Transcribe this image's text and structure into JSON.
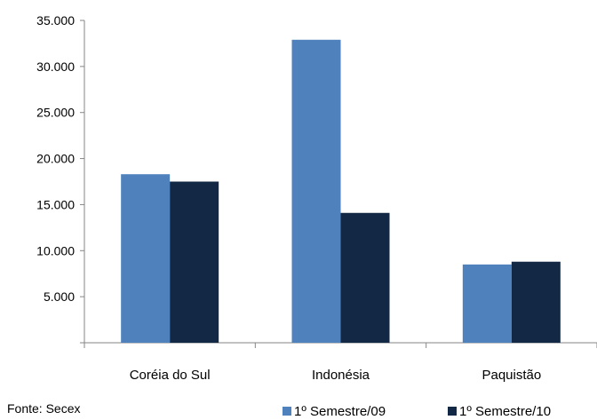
{
  "chart_data": {
    "type": "bar",
    "categories": [
      "Coréia do Sul",
      "Indonésia",
      "Paquistão"
    ],
    "series": [
      {
        "name": "1º Semestre/09",
        "color": "#4f81bd",
        "values": [
          18300,
          32900,
          8500
        ]
      },
      {
        "name": "1º Semestre/10",
        "color": "#132845",
        "values": [
          17500,
          14100,
          8800
        ]
      }
    ],
    "y_ticks": [
      "5.000",
      "10.000",
      "15.000",
      "20.000",
      "25.000",
      "30.000",
      "35.000"
    ],
    "ylim": [
      0,
      35000
    ],
    "legend_position": "bottom-right",
    "grid": false
  },
  "source_note": "Fonte: Secex"
}
